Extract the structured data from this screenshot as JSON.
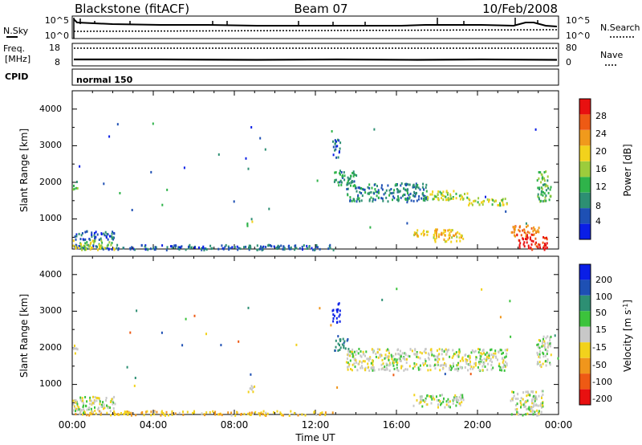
{
  "header": {
    "title": "Blackstone (fitACF)",
    "beam": "Beam 07",
    "date": "10/Feb/2008"
  },
  "noise_panel": {
    "left_label": "N.Sky",
    "left_ticks": [
      "10^5",
      "10^0"
    ],
    "right_ticks": [
      "10^5",
      "10^0"
    ],
    "right_label": "N.Search",
    "right_line_style": "dotted"
  },
  "freq_panel": {
    "left_label_1": "Freq.",
    "left_label_2": "[MHz]",
    "left_ticks": [
      "18",
      "8"
    ],
    "right_ticks": [
      "80",
      "0"
    ],
    "right_label": "Nave",
    "right_line_style": "dotted"
  },
  "cpid_panel": {
    "label": "CPID",
    "program": "normal 150"
  },
  "colors": {
    "power": [
      "#0a1ee6",
      "#1e50b4",
      "#2d8f73",
      "#2fb34a",
      "#9ccc3c",
      "#f2d21c",
      "#f09a1c",
      "#ee5a14",
      "#e81010"
    ],
    "velocity": [
      "#0a1ee6",
      "#1e50b4",
      "#2d8f73",
      "#3cc33c",
      "#c8c8c8",
      "#f2d21c",
      "#f0961c",
      "#ee5a14",
      "#e81010"
    ],
    "ground_scatter": "#c8c8c8"
  },
  "chart_data": [
    {
      "type": "heatmap",
      "title": "",
      "xlabel": "",
      "ylabel": "Slant Range [km]",
      "x_ticks": [
        "00:00",
        "04:00",
        "08:00",
        "12:00",
        "16:00",
        "20:00",
        "00:00"
      ],
      "xlim_hours": [
        0,
        24
      ],
      "ylim": [
        180,
        4500
      ],
      "y_ticks": [
        "1000",
        "2000",
        "3000",
        "4000"
      ],
      "colorbar_label": "Power [dB]",
      "colorbar_ticks": [
        "4",
        "8",
        "12",
        "16",
        "20",
        "24",
        "28"
      ],
      "colorbar_range": [
        0,
        30
      ],
      "scatter_regions": [
        {
          "t0": 0.0,
          "t1": 13.0,
          "r0": 180,
          "r1": 320,
          "value": 6
        },
        {
          "t0": 0.0,
          "t1": 2.1,
          "r0": 180,
          "r1": 450,
          "value": 16
        },
        {
          "t0": 0.0,
          "t1": 2.1,
          "r0": 450,
          "r1": 700,
          "value": 6
        },
        {
          "t0": 0.0,
          "t1": 0.25,
          "r0": 1800,
          "r1": 2100,
          "value": 13
        },
        {
          "t0": 8.6,
          "t1": 8.9,
          "r0": 800,
          "r1": 1000,
          "value": 14
        },
        {
          "t0": 12.8,
          "t1": 13.2,
          "r0": 2700,
          "r1": 3250,
          "value": 6
        },
        {
          "t0": 12.9,
          "t1": 14.0,
          "r0": 1950,
          "r1": 2350,
          "value": 10
        },
        {
          "t0": 13.5,
          "t1": 17.5,
          "r0": 1500,
          "r1": 2000,
          "value": 8
        },
        {
          "t0": 17.5,
          "t1": 19.5,
          "r0": 1550,
          "r1": 1800,
          "value": 16
        },
        {
          "t0": 19.5,
          "t1": 21.5,
          "r0": 1400,
          "r1": 1600,
          "value": 16
        },
        {
          "t0": 16.8,
          "t1": 17.6,
          "r0": 550,
          "r1": 750,
          "value": 17
        },
        {
          "t0": 17.8,
          "t1": 19.3,
          "r0": 400,
          "r1": 750,
          "value": 20
        },
        {
          "t0": 21.6,
          "t1": 23.0,
          "r0": 550,
          "r1": 850,
          "value": 24
        },
        {
          "t0": 22.0,
          "t1": 23.4,
          "r0": 180,
          "r1": 550,
          "value": 29
        },
        {
          "t0": 22.9,
          "t1": 23.6,
          "r0": 1500,
          "r1": 2350,
          "value": 12
        }
      ]
    },
    {
      "type": "heatmap",
      "title": "",
      "xlabel": "Time UT",
      "ylabel": "Slant Range [km]",
      "x_ticks": [
        "00:00",
        "04:00",
        "08:00",
        "12:00",
        "16:00",
        "20:00",
        "00:00"
      ],
      "xlim_hours": [
        0,
        24
      ],
      "ylim": [
        180,
        4500
      ],
      "y_ticks": [
        "1000",
        "2000",
        "3000",
        "4000"
      ],
      "colorbar_label": "Velocity [m s^-1]",
      "colorbar_ticks": [
        "200",
        "100",
        "50",
        "15",
        "-15",
        "-50",
        "-100",
        "-200"
      ],
      "colorbar_range": [
        -250,
        250
      ],
      "scatter_regions": [
        {
          "t0": 0.0,
          "t1": 13.0,
          "r0": 180,
          "r1": 300,
          "value": -40
        },
        {
          "t0": 0.0,
          "t1": 2.1,
          "r0": 250,
          "r1": 700,
          "value": 0
        },
        {
          "t0": 0.0,
          "t1": 0.25,
          "r0": 1800,
          "r1": 2100,
          "value": 0
        },
        {
          "t0": 8.6,
          "t1": 8.9,
          "r0": 800,
          "r1": 1000,
          "value": 0
        },
        {
          "t0": 12.8,
          "t1": 13.2,
          "r0": 2700,
          "r1": 3250,
          "value": 230
        },
        {
          "t0": 12.9,
          "t1": 13.6,
          "r0": 1950,
          "r1": 2350,
          "value": 80
        },
        {
          "t0": 13.5,
          "t1": 21.5,
          "r0": 1400,
          "r1": 2000,
          "value": 0
        },
        {
          "t0": 16.8,
          "t1": 19.3,
          "r0": 400,
          "r1": 750,
          "value": 0
        },
        {
          "t0": 21.6,
          "t1": 23.2,
          "r0": 180,
          "r1": 850,
          "value": 0
        },
        {
          "t0": 22.9,
          "t1": 23.6,
          "r0": 1500,
          "r1": 2350,
          "value": 0
        }
      ]
    }
  ]
}
